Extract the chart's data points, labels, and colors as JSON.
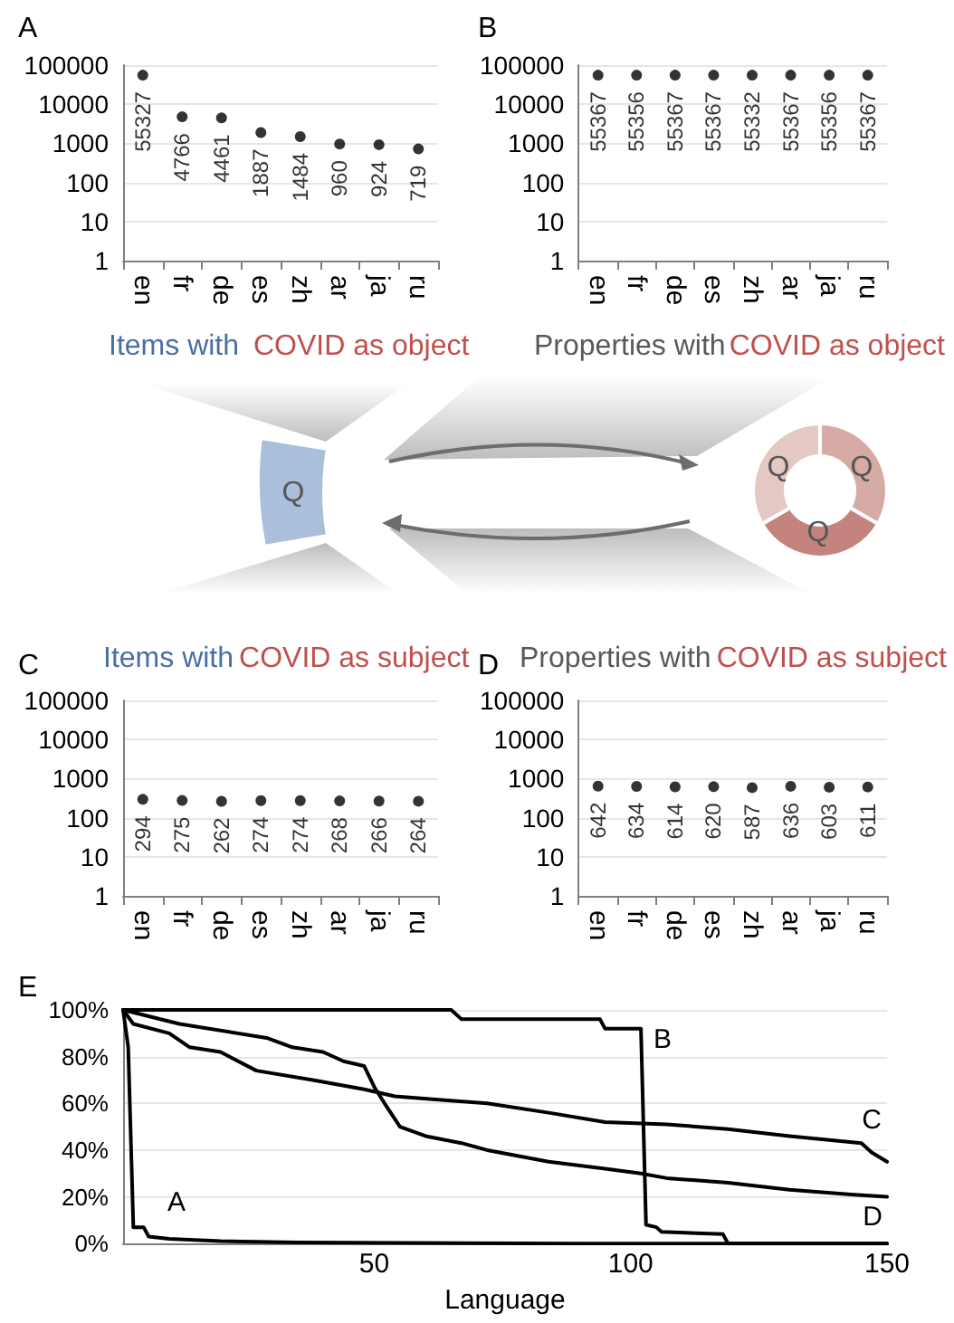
{
  "chart_data": [
    {
      "type": "scatter",
      "title": "A",
      "categories": [
        "en",
        "fr",
        "de",
        "es",
        "zh",
        "ar",
        "ja",
        "ru"
      ],
      "values": [
        55327,
        4766,
        4461,
        1887,
        1484,
        960,
        924,
        719
      ],
      "color": "#000000",
      "log": true,
      "ylim": [
        1,
        100000
      ],
      "yticks": [
        1,
        10,
        100,
        1000,
        10000,
        100000
      ],
      "grid": "y",
      "data_labels": true,
      "marker": "circle"
    },
    {
      "type": "scatter",
      "title": "B",
      "categories": [
        "en",
        "fr",
        "de",
        "es",
        "zh",
        "ar",
        "ja",
        "ru"
      ],
      "values": [
        55367,
        55356,
        55367,
        55367,
        55332,
        55367,
        55356,
        55367
      ],
      "color": "#000000",
      "log": true,
      "ylim": [
        1,
        100000
      ],
      "yticks": [
        1,
        10,
        100,
        1000,
        10000,
        100000
      ],
      "grid": "y",
      "data_labels": true,
      "marker": "circle"
    },
    {
      "type": "other",
      "annotations": [
        "Items with",
        "COVID as object",
        "Properties with",
        "COVID as object",
        "Q",
        "Q",
        "Q",
        "Q"
      ]
    },
    {
      "type": "scatter",
      "title": "C",
      "annotations": [
        "Items with",
        "COVID as subject"
      ],
      "categories": [
        "en",
        "fr",
        "de",
        "es",
        "zh",
        "ar",
        "ja",
        "ru"
      ],
      "values": [
        294,
        275,
        262,
        274,
        274,
        268,
        266,
        264
      ],
      "color": "#000000",
      "log": true,
      "ylim": [
        1,
        100000
      ],
      "yticks": [
        1,
        10,
        100,
        1000,
        10000,
        100000
      ],
      "grid": "y",
      "data_labels": true,
      "marker": "circle"
    },
    {
      "type": "scatter",
      "title": "D",
      "annotations": [
        "Properties with",
        "COVID as subject"
      ],
      "categories": [
        "en",
        "fr",
        "de",
        "es",
        "zh",
        "ar",
        "ja",
        "ru"
      ],
      "values": [
        642,
        634,
        614,
        620,
        587,
        636,
        603,
        611
      ],
      "color": "#000000",
      "log": true,
      "ylim": [
        1,
        100000
      ],
      "yticks": [
        1,
        10,
        100,
        1000,
        10000,
        100000
      ],
      "grid": "y",
      "data_labels": true,
      "marker": "circle"
    },
    {
      "type": "line",
      "title": "E",
      "xlabel": "Language",
      "xlim": [
        1,
        150
      ],
      "xticks": [
        50,
        100,
        150
      ],
      "ylim": [
        0,
        100
      ],
      "yticks": [
        {
          "value": 0,
          "label": "0%"
        },
        {
          "value": 20,
          "label": "20%"
        },
        {
          "value": 40,
          "label": "40%"
        },
        {
          "value": 60,
          "label": "60%"
        },
        {
          "value": 80,
          "label": "80%"
        },
        {
          "value": 100,
          "label": "100%"
        }
      ],
      "grid": "y",
      "marker": "none",
      "line_style": "solid",
      "series": [
        {
          "name": "A",
          "color": "#000000",
          "x": [
            1,
            2,
            3,
            5,
            6,
            10,
            20,
            35,
            90,
            150
          ],
          "values": [
            100,
            84,
            7,
            7,
            3,
            2,
            1,
            0.5,
            0,
            0
          ]
        },
        {
          "name": "B",
          "color": "#000000",
          "x": [
            1,
            65,
            67,
            94,
            95,
            102,
            103,
            105,
            106,
            118,
            119,
            150
          ],
          "values": [
            100,
            100,
            96,
            96,
            92,
            92,
            8,
            7,
            5,
            4,
            0,
            0
          ]
        },
        {
          "name": "C",
          "color": "#000000",
          "x": [
            1,
            3,
            10,
            14,
            20,
            27,
            38,
            48,
            54,
            66,
            72,
            84,
            95,
            107,
            119,
            131,
            145,
            147,
            150
          ],
          "values": [
            100,
            94,
            90,
            84,
            82,
            74,
            70,
            66,
            63,
            61,
            60,
            56,
            52,
            51,
            49,
            46,
            43,
            39,
            35
          ]
        },
        {
          "name": "D",
          "color": "#000000",
          "x": [
            1,
            12,
            29,
            34,
            40,
            44,
            48,
            50,
            52,
            55,
            60,
            67,
            72,
            84,
            95,
            102,
            107,
            119,
            131,
            143,
            150
          ],
          "values": [
            100,
            94,
            88,
            84,
            82,
            78,
            76,
            67,
            60,
            50,
            46,
            43,
            40,
            35,
            32,
            30,
            28,
            26,
            23,
            21,
            20
          ]
        }
      ]
    }
  ]
}
